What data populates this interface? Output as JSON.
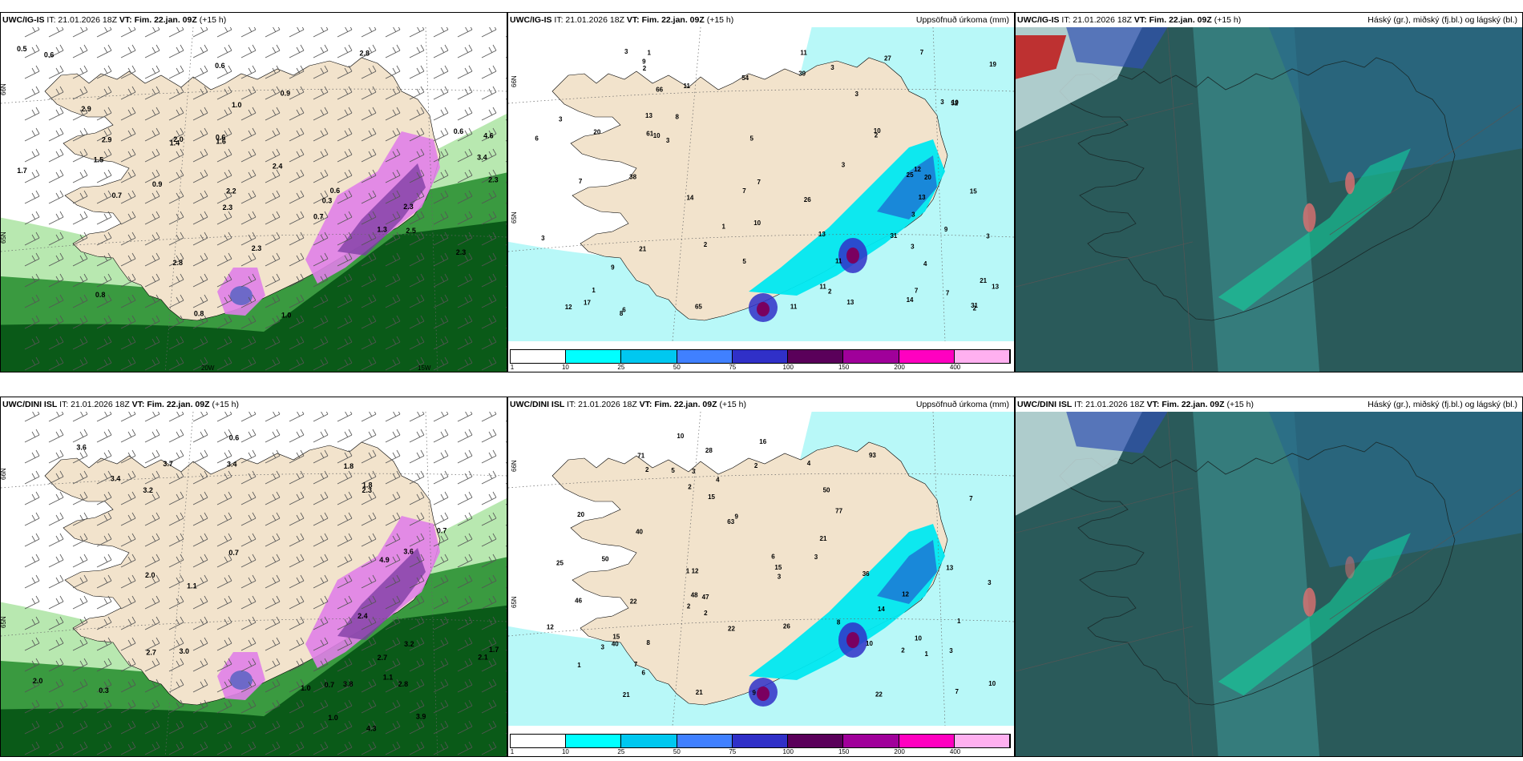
{
  "rows": [
    {
      "model_label": "UWC/IG-IS",
      "panels": [
        {
          "id": "snow",
          "prefix_text": "IT: 21.01.2026 18Z",
          "vt_text": "VT: Fim. 22.jan. 09Z",
          "lead_text": "(+15 h)",
          "subtitle": "",
          "lat_labels": [
            "66N",
            "65N"
          ],
          "lon_labels": [
            "20W",
            "15W"
          ],
          "value_labels": [
            "0.5",
            "0.6",
            "0.6",
            "1.0",
            "0.8",
            "1.0",
            "0.7",
            "0.8",
            "2.8",
            "2.4",
            "3.4",
            "2.5",
            "2.9",
            "2.3",
            "2.3",
            "2.2",
            "2.3",
            "2.3",
            "0.3",
            "1.4",
            "1.3",
            "0.9",
            "0.6",
            "0.6",
            "2.9",
            "2.0",
            "2.3",
            "1.7",
            "1.5",
            "1.6",
            "4.6",
            "2.8",
            "0.9",
            "0.6",
            "0.7"
          ]
        },
        {
          "id": "precip",
          "prefix_text": "IT: 21.01.2026 18Z",
          "vt_text": "VT: Fim. 22.jan. 09Z",
          "lead_text": "(+15 h)",
          "subtitle": "Uppsöfnuð úrkoma (mm)",
          "lat_labels": [
            "66N",
            "65N"
          ],
          "lon_labels": [],
          "value_labels": [
            "3",
            "3",
            "3",
            "6",
            "12",
            "12",
            "1",
            "1",
            "3",
            "1",
            "2",
            "20",
            "3",
            "3",
            "7",
            "7",
            "8",
            "9",
            "13",
            "15",
            "11",
            "7",
            "6",
            "8",
            "13",
            "3",
            "10",
            "25",
            "4",
            "2",
            "14",
            "11",
            "39",
            "54",
            "17",
            "13",
            "21",
            "19",
            "20",
            "52",
            "66",
            "61",
            "31",
            "21",
            "13",
            "3",
            "3",
            "2",
            "2",
            "10",
            "9",
            "14",
            "27",
            "26",
            "31",
            "7",
            "5",
            "38",
            "65",
            "3",
            "2",
            "11",
            "13",
            "11",
            "7",
            "7",
            "5",
            "10",
            "11",
            "9",
            "10",
            "3"
          ],
          "colorbar_label": ""
        },
        {
          "id": "cloud",
          "prefix_text": "IT: 21.01.2026 18Z",
          "vt_text": "VT: Fim. 22.jan. 09Z",
          "lead_text": "(+15 h)",
          "subtitle": "Háský (gr.), miðský (fj.bl.) og lágský (bl.)"
        }
      ]
    },
    {
      "model_label": "UWC/DINI ISL",
      "panels": [
        {
          "id": "snow",
          "prefix_text": "IT: 21.01.2026 18Z",
          "vt_text": "VT: Fim. 22.jan. 09Z",
          "lead_text": "(+15 h)",
          "subtitle": "",
          "lat_labels": [
            "66N",
            "65N",
            "64N"
          ],
          "lon_labels": [],
          "value_labels": [
            "1.8",
            "1.1",
            "1.7",
            "3.6",
            "2.0",
            "3.2",
            "2.7",
            "0.7",
            "2.4",
            "2.0",
            "3.0",
            "3.9",
            "0.7",
            "3.2",
            "2.7",
            "2.8",
            "4.9",
            "2.3",
            "3.4",
            "3.4",
            "4.3",
            "3.8",
            "3.7",
            "1.1",
            "1.0",
            "1.8",
            "2.1",
            "0.6",
            "3.6",
            "0.3",
            "1.0",
            "0.7"
          ]
        },
        {
          "id": "precip",
          "prefix_text": "IT: 21.01.2026 18Z",
          "vt_text": "VT: Fim. 22.jan. 09Z",
          "lead_text": "(+15 h)",
          "subtitle": "Uppsöfnuð úrkoma (mm)",
          "lat_labels": [
            "66N",
            "65N"
          ],
          "lon_labels": [],
          "value_labels": [
            "3",
            "3",
            "3",
            "3",
            "10",
            "6",
            "8",
            "9",
            "1",
            "1",
            "2",
            "40",
            "2",
            "7",
            "7",
            "7",
            "1",
            "1",
            "3",
            "2",
            "4",
            "10",
            "8",
            "2",
            "3",
            "4",
            "6",
            "2",
            "9",
            "12",
            "2",
            "13",
            "22",
            "22",
            "15",
            "28",
            "36",
            "48",
            "50",
            "46",
            "21",
            "21",
            "77",
            "63",
            "71",
            "20",
            "40",
            "93",
            "12",
            "12",
            "15",
            "26",
            "16",
            "14",
            "15",
            "5",
            "10",
            "50",
            "21",
            "22",
            "25",
            "47",
            "10"
          ],
          "colorbar_label": ""
        },
        {
          "id": "cloud",
          "prefix_text": "IT: 21.01.2026 18Z",
          "vt_text": "VT: Fim. 22.jan. 09Z",
          "lead_text": "(+15 h)",
          "subtitle": "Háský (gr.), miðský (fj.bl.) og lágský (bl.)"
        }
      ]
    }
  ],
  "colorbar": {
    "ticks": [
      "1",
      "10",
      "25",
      "50",
      "75",
      "100",
      "150",
      "200",
      "400"
    ],
    "colors": [
      "#ffffff",
      "#00ffff",
      "#00c8f0",
      "#4080ff",
      "#3030c8",
      "#5a005a",
      "#a0009a",
      "#ff00c0",
      "#ffb0f0"
    ]
  },
  "colors": {
    "land": "#f2e3cc",
    "sea_snow": "#ffffff",
    "snow_green_light": "#b8e8b0",
    "snow_green_mid": "#3a9a40",
    "snow_green_dark": "#0a5a18",
    "snow_magenta": "#e080e8",
    "snow_purple": "#7a3aa0",
    "precip_light": "#b8f8f8",
    "precip_cyan": "#00e8f0",
    "cloud_dark": "#2a5a5a",
    "cloud_teal": "#3a8a8a",
    "cloud_blue": "#3050b0",
    "cloud_red": "#c02020"
  }
}
